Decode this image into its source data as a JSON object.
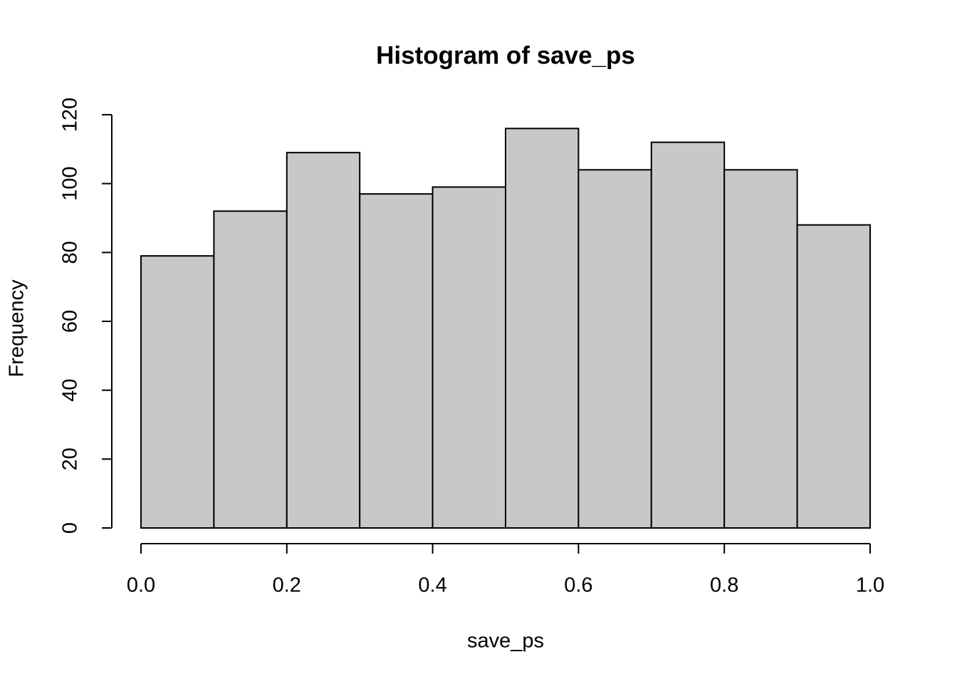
{
  "chart_data": {
    "type": "histogram",
    "title": "Histogram of save_ps",
    "x_label": "save_ps",
    "y_label": "Frequency",
    "bins": [
      0,
      0.1,
      0.2,
      0.3,
      0.4,
      0.5,
      0.6,
      0.7,
      0.8,
      0.9,
      1
    ],
    "values": [
      79,
      92,
      109,
      97,
      99,
      116,
      104,
      112,
      104,
      88
    ],
    "color": "#c8c8c8",
    "xlim": [
      0,
      1
    ],
    "xticks": [
      {
        "value": 0,
        "label": "0.0"
      },
      0.2,
      0.4,
      0.6,
      0.8,
      {
        "value": 1,
        "label": "1.0"
      }
    ],
    "ylim": [
      0,
      120
    ],
    "yticks": [
      0,
      20,
      40,
      60,
      80,
      100,
      120
    ]
  }
}
